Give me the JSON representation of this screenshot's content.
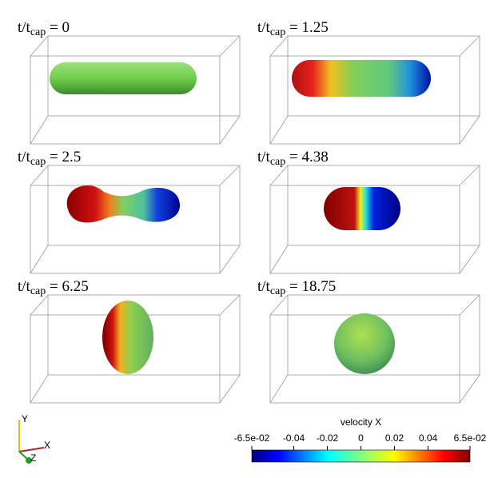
{
  "panels": [
    {
      "label": [
        "t/t",
        "cap",
        " = 0"
      ]
    },
    {
      "label": [
        "t/t",
        "cap",
        " = 1.25"
      ]
    },
    {
      "label": [
        "t/t",
        "cap",
        " = 2.5"
      ]
    },
    {
      "label": [
        "t/t",
        "cap",
        " = 4.38"
      ]
    },
    {
      "label": [
        "t/t",
        "cap",
        " = 6.25"
      ]
    },
    {
      "label": [
        "t/t",
        "cap",
        " = 18.75"
      ]
    }
  ],
  "axes": {
    "y": "Y",
    "x": "X",
    "z": "Z"
  },
  "colorbar": {
    "title": "velocity X",
    "lim": [
      -0.065,
      0.065
    ],
    "ticks": [
      {
        "value": -0.065,
        "label": "-6.5e-02"
      },
      -0.04,
      -0.02,
      0,
      0.02,
      0.04,
      {
        "value": 0.065,
        "label": "6.5e-02"
      }
    ]
  }
}
